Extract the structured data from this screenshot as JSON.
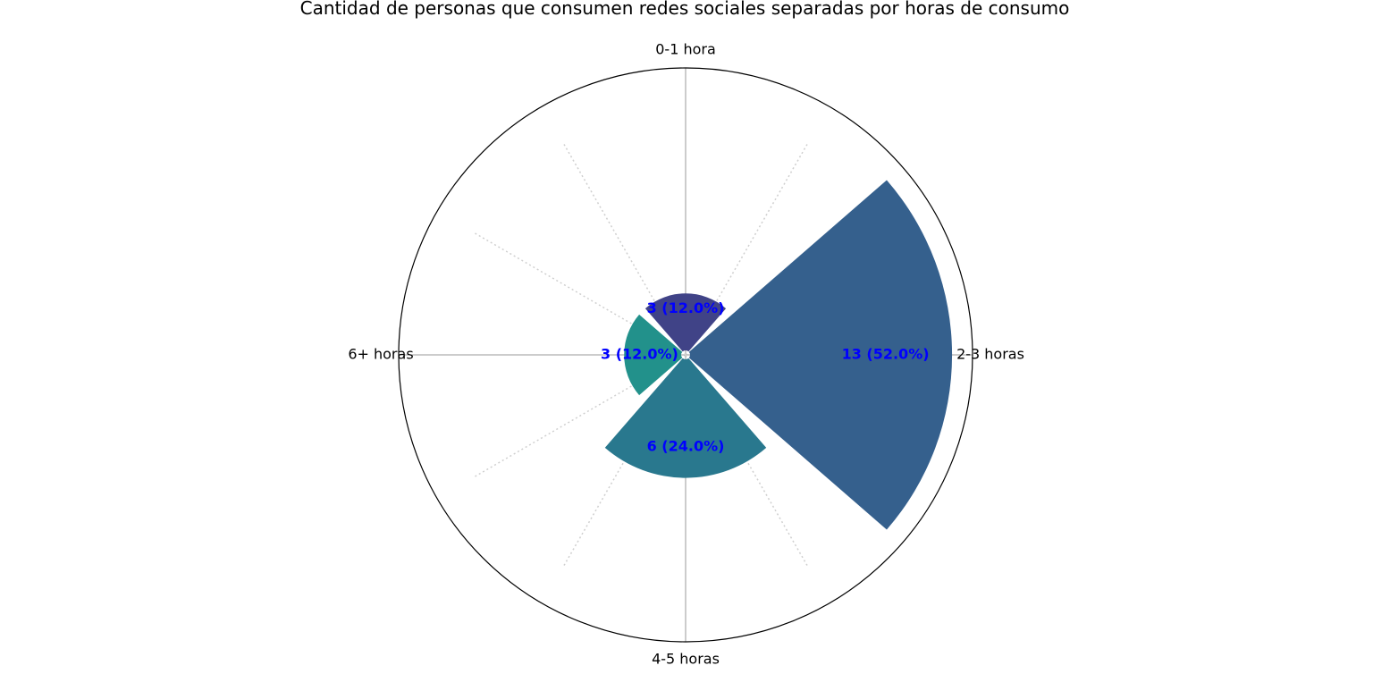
{
  "chart_data": {
    "type": "polar-bar",
    "title": "Cantidad de personas que consumen redes sociales separadas por horas de consumo",
    "categories": [
      "0-1 hora",
      "2-3 horas",
      "4-5 horas",
      "6+ horas"
    ],
    "values": [
      3,
      13,
      6,
      3
    ],
    "value_labels": [
      "3 (12.0%)",
      "13 (52.0%)",
      "6 (24.0%)",
      "3 (12.0%)"
    ],
    "colors": [
      "#404387",
      "#35608d",
      "#29788e",
      "#22918b"
    ],
    "value_label_color": "#0000ff",
    "rlim": [
      0,
      14
    ],
    "grid": true
  }
}
